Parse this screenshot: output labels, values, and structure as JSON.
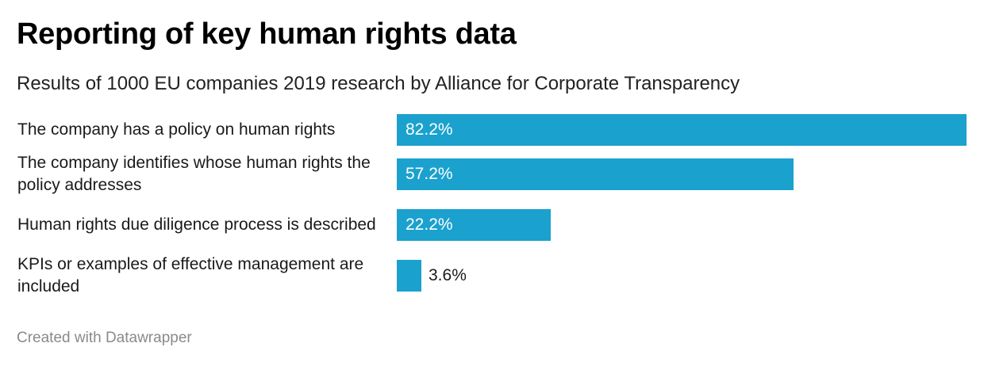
{
  "header": {
    "title": "Reporting of key human rights data",
    "subtitle": "Results of 1000 EU companies 2019 research by Alliance for Corporate Transparency"
  },
  "footer": {
    "credit": "Created with Datawrapper"
  },
  "colors": {
    "bar": "#1ba1ce",
    "text": "#1a1a1a",
    "footer": "#8a8a8a"
  },
  "chart_data": {
    "type": "bar",
    "orientation": "horizontal",
    "title": "Reporting of key human rights data",
    "subtitle": "Results of 1000 EU companies 2019 research by Alliance for Corporate Transparency",
    "categories": [
      "The company has a policy on human rights",
      "The company identifies whose human rights the policy addresses",
      "Human rights due diligence process is described",
      "KPIs or examples of effective management are included"
    ],
    "values": [
      82.2,
      57.2,
      22.2,
      3.6
    ],
    "value_labels": [
      "82.2%",
      "57.2%",
      "22.2%",
      "3.6%"
    ],
    "unit": "%",
    "xlim": [
      0,
      82.2
    ],
    "grid": false,
    "legend": "none"
  }
}
